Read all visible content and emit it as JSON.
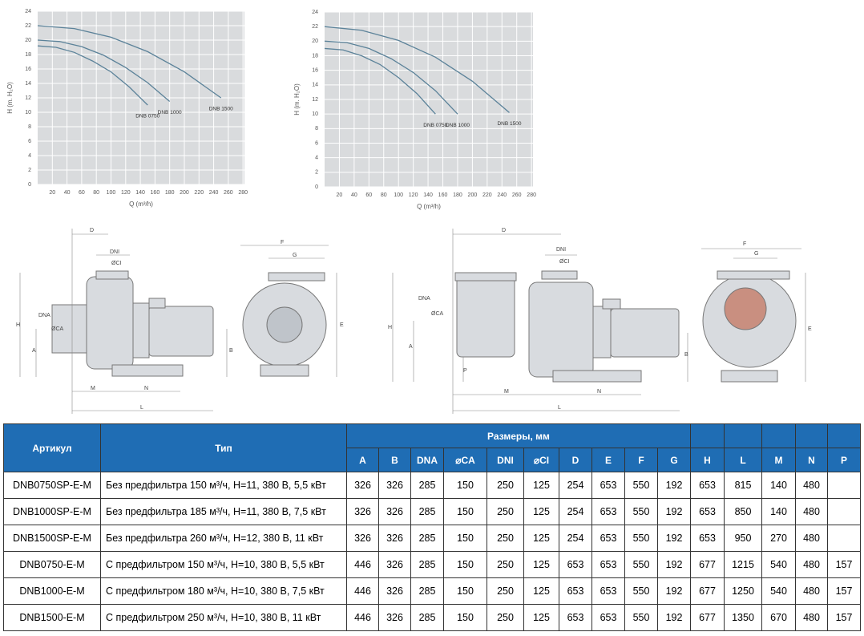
{
  "chart_data": [
    {
      "type": "line",
      "xlabel": "Q (m³/h)",
      "ylabel": "H (m. H₂O)",
      "xlim": [
        0,
        282
      ],
      "ylim": [
        0,
        24
      ],
      "xticks": [
        20,
        40,
        60,
        80,
        100,
        120,
        140,
        160,
        180,
        200,
        220,
        240,
        260,
        280
      ],
      "yticks": [
        0,
        2,
        4,
        6,
        8,
        10,
        12,
        14,
        16,
        18,
        20,
        22,
        24
      ],
      "grid": true,
      "series": [
        {
          "name": "DNB 0750",
          "color": "#5b8299",
          "x": [
            0,
            25,
            50,
            75,
            100,
            125,
            150
          ],
          "values": [
            19.2,
            19.0,
            18.3,
            17.1,
            15.6,
            13.5,
            11.0
          ]
        },
        {
          "name": "DNB 1000",
          "color": "#5b8299",
          "x": [
            0,
            30,
            60,
            90,
            120,
            150,
            180
          ],
          "values": [
            20.0,
            19.8,
            19.1,
            17.9,
            16.2,
            14.1,
            11.5
          ]
        },
        {
          "name": "DNB 1500",
          "color": "#5b8299",
          "x": [
            0,
            50,
            100,
            150,
            200,
            250
          ],
          "values": [
            22.0,
            21.6,
            20.4,
            18.4,
            15.6,
            12.0
          ]
        }
      ]
    },
    {
      "type": "line",
      "xlabel": "Q (m³/h)",
      "ylabel": "H (m. H₂O)",
      "xlim": [
        0,
        282
      ],
      "ylim": [
        0,
        24
      ],
      "xticks": [
        20,
        40,
        60,
        80,
        100,
        120,
        140,
        160,
        180,
        200,
        220,
        240,
        260,
        280
      ],
      "yticks": [
        0,
        2,
        4,
        6,
        8,
        10,
        12,
        14,
        16,
        18,
        20,
        22,
        24
      ],
      "grid": true,
      "series": [
        {
          "name": "DNB 0750",
          "color": "#5b8299",
          "x": [
            0,
            25,
            50,
            75,
            100,
            125,
            150
          ],
          "values": [
            19.0,
            18.8,
            18.0,
            16.8,
            15.0,
            12.8,
            10.0
          ]
        },
        {
          "name": "DNB 1000",
          "color": "#5b8299",
          "x": [
            0,
            30,
            60,
            90,
            120,
            150,
            180
          ],
          "values": [
            20.0,
            19.8,
            19.0,
            17.6,
            15.7,
            13.2,
            10.0
          ]
        },
        {
          "name": "DNB 1500",
          "color": "#5b8299",
          "x": [
            0,
            50,
            100,
            150,
            200,
            250
          ],
          "values": [
            22.0,
            21.5,
            20.1,
            17.8,
            14.5,
            10.2
          ]
        }
      ]
    }
  ],
  "drawings": {
    "views": [
      {
        "labels": [
          "D",
          "DNI",
          "ØCI",
          "DNA",
          "ØCA",
          "H",
          "A",
          "M",
          "N",
          "L"
        ]
      },
      {
        "labels": [
          "F",
          "G",
          "E",
          "B"
        ]
      },
      {
        "labels": [
          "D",
          "DNI",
          "ØCI",
          "DNA",
          "ØCA",
          "H",
          "A",
          "P",
          "M",
          "N",
          "L"
        ]
      },
      {
        "labels": [
          "F",
          "G",
          "E",
          "B"
        ]
      }
    ]
  },
  "table": {
    "header": {
      "article": "Артикул",
      "type": "Тип",
      "dimensions": "Размеры, мм",
      "columns": [
        "A",
        "B",
        "DNA",
        "⌀CA",
        "DNI",
        "⌀CI",
        "D",
        "E",
        "F",
        "G",
        "H",
        "L",
        "M",
        "N",
        "P"
      ]
    },
    "rows": [
      [
        "DNB0750SP-E-M",
        "Без предфильтра 150 м³/ч, H=11, 380 В, 5,5 кВт",
        326,
        326,
        285,
        150,
        250,
        125,
        254,
        653,
        550,
        192,
        653,
        815,
        140,
        480,
        null
      ],
      [
        "DNB1000SP-E-M",
        "Без предфильтра 185 м³/ч, H=11, 380 В, 7,5 кВт",
        326,
        326,
        285,
        150,
        250,
        125,
        254,
        653,
        550,
        192,
        653,
        850,
        140,
        480,
        null
      ],
      [
        "DNB1500SP-E-M",
        "Без предфильтра 260 м³/ч, H=12, 380 В, 11 кВт",
        326,
        326,
        285,
        150,
        250,
        125,
        254,
        653,
        550,
        192,
        653,
        950,
        270,
        480,
        null
      ],
      [
        "DNB0750-E-M",
        "С предфильтром 150 м³/ч, H=10, 380 В, 5,5 кВт",
        446,
        326,
        285,
        150,
        250,
        125,
        653,
        653,
        550,
        192,
        677,
        1215,
        540,
        480,
        157
      ],
      [
        "DNB1000-E-M",
        "С предфильтром 180 м³/ч, H=10, 380 В, 7,5 кВт",
        446,
        326,
        285,
        150,
        250,
        125,
        653,
        653,
        550,
        192,
        677,
        1250,
        540,
        480,
        157
      ],
      [
        "DNB1500-E-M",
        "С предфильтром 250 м³/ч, H=10, 380 В, 11 кВт",
        446,
        326,
        285,
        150,
        250,
        125,
        653,
        653,
        550,
        192,
        677,
        1350,
        670,
        480,
        157
      ]
    ]
  }
}
